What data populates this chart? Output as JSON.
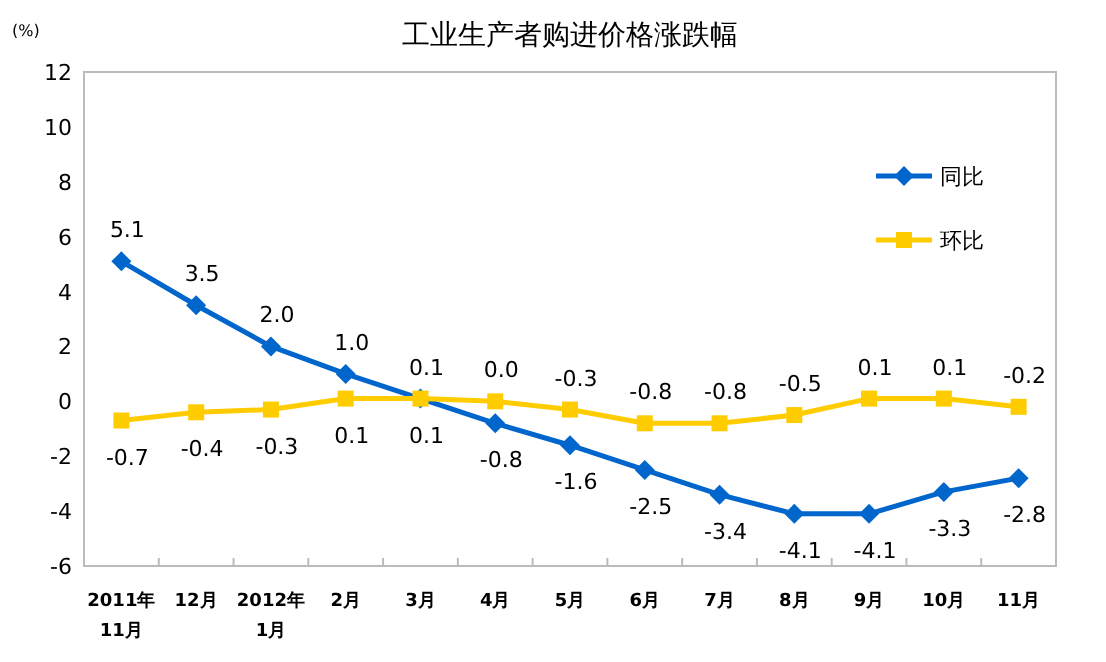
{
  "chart_data": {
    "type": "line",
    "title": "工业生产者购进价格涨跌幅",
    "ylabel": "(%)",
    "categories": [
      "2011年\n11月",
      "12月",
      "2012年\n1月",
      "2月",
      "3月",
      "4月",
      "5月",
      "6月",
      "7月",
      "8月",
      "9月",
      "10月",
      "11月"
    ],
    "series": [
      {
        "name": "同比",
        "color": "#0066cc",
        "marker": "diamond",
        "values": [
          5.1,
          3.5,
          2.0,
          1.0,
          0.1,
          -0.8,
          -1.6,
          -2.5,
          -3.4,
          -4.1,
          -4.1,
          -3.3,
          -2.8
        ],
        "value_labels": [
          "5.1",
          "3.5",
          "2.0",
          "1.0",
          "0.1",
          "-0.8",
          "-1.6",
          "-2.5",
          "-3.4",
          "-4.1",
          "-4.1",
          "-3.3",
          "-2.8"
        ]
      },
      {
        "name": "环比",
        "color": "#ffcc00",
        "marker": "square",
        "values": [
          -0.7,
          -0.4,
          -0.3,
          0.1,
          0.1,
          0.0,
          -0.3,
          -0.8,
          -0.8,
          -0.5,
          0.1,
          0.1,
          -0.2
        ],
        "value_labels": [
          "-0.7",
          "-0.4",
          "-0.3",
          "0.1",
          "0.1",
          "0.0",
          "-0.3",
          "-0.8",
          "-0.8",
          "-0.5",
          "0.1",
          "0.1",
          "-0.2"
        ]
      }
    ],
    "ylim": [
      -6,
      12
    ],
    "yticks": [
      -6,
      -4,
      -2,
      0,
      2,
      4,
      6,
      8,
      10,
      12
    ],
    "legend": "top right",
    "grid": false,
    "line_style": "solid"
  }
}
